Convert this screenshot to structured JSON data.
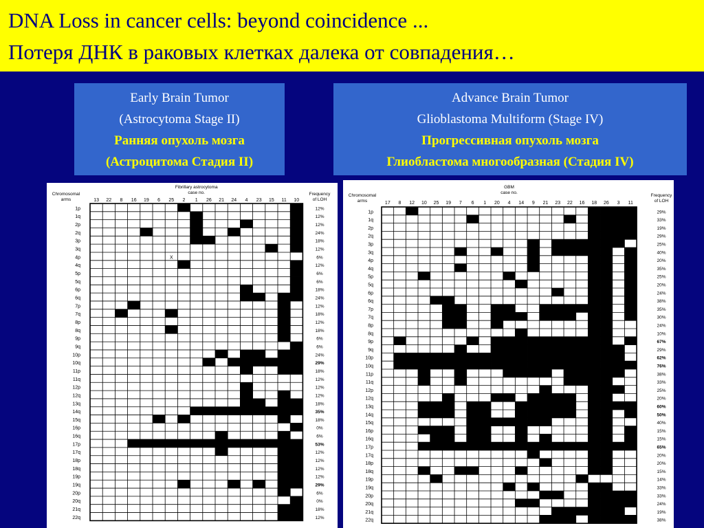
{
  "title": {
    "en": "DNA Loss in cancer cells: beyond coincidence ...",
    "ru": "Потеря ДНК в раковых клетках далека от совпадения…"
  },
  "left_label": {
    "en_line1": "Early Brain Tumor",
    "en_line2": "(Astrocytoma Stage II)",
    "ru_line1": "Ранняя опухоль мозга",
    "ru_line2": "(Астроцитома Стадия II)"
  },
  "right_label": {
    "en_line1": "Advance Brain Tumor",
    "en_line2": "Glioblastoma Multiform (Stage IV)",
    "ru_line1": "Прогрессивная опухоль мозга",
    "ru_line2": "Глиобластома многообразная (Стадия IV)"
  },
  "arms": [
    "1p",
    "1q",
    "2p",
    "2q",
    "3p",
    "3q",
    "4p",
    "4q",
    "5p",
    "5q",
    "6p",
    "6q",
    "7p",
    "7q",
    "8p",
    "8q",
    "9p",
    "9q",
    "10p",
    "10q",
    "11p",
    "11q",
    "12p",
    "12q",
    "13q",
    "14q",
    "15q",
    "16p",
    "16q",
    "17p",
    "17q",
    "18p",
    "18q",
    "19p",
    "19q",
    "20p",
    "20q",
    "21q",
    "22q"
  ],
  "left_table": {
    "header_label1": "Chromosomal",
    "header_label2": "arms",
    "title1": "Fibrillary astrocytoma",
    "title2": "case no.",
    "freq1": "Frequency",
    "freq2": "of LOH",
    "cases": [
      "13",
      "22",
      "8",
      "16",
      "19",
      "6",
      "25",
      "2",
      "1",
      "26",
      "21",
      "24",
      "4",
      "23",
      "15",
      "11",
      "10"
    ],
    "freq": [
      "12%",
      "12%",
      "12%",
      "24%",
      "18%",
      "12%",
      "6%",
      "12%",
      "6%",
      "6%",
      "18%",
      "24%",
      "12%",
      "18%",
      "12%",
      "18%",
      "6%",
      "6%",
      "24%",
      "29%",
      "18%",
      "12%",
      "12%",
      "12%",
      "18%",
      "35%",
      "18%",
      "0%",
      "6%",
      "53%",
      "12%",
      "12%",
      "12%",
      "12%",
      "29%",
      "6%",
      "0%",
      "18%",
      "12%"
    ],
    "bold_freq": [
      19,
      25,
      29,
      34
    ],
    "marker": "X",
    "loss": [
      [
        7,
        16
      ],
      [
        8,
        16
      ],
      [
        8,
        12,
        16
      ],
      [
        4,
        8,
        11,
        16
      ],
      [
        8,
        9,
        16
      ],
      [
        14,
        16
      ],
      [],
      [
        7,
        16
      ],
      [
        16
      ],
      [
        16
      ],
      [
        12,
        16
      ],
      [
        12,
        13,
        15,
        16
      ],
      [
        3,
        15
      ],
      [
        2,
        6,
        15
      ],
      [
        15
      ],
      [
        6,
        15
      ],
      [
        15
      ],
      [
        16
      ],
      [
        10,
        12,
        13,
        15,
        16
      ],
      [
        9,
        11,
        12,
        13,
        14,
        15,
        16
      ],
      [
        12,
        15,
        16
      ],
      [],
      [
        12
      ],
      [
        12,
        15
      ],
      [
        12,
        13,
        15,
        16
      ],
      [
        8,
        9,
        10,
        11,
        12,
        13,
        14,
        15,
        16
      ],
      [
        5,
        7,
        15
      ],
      [
        16
      ],
      [
        10,
        15
      ],
      [
        3,
        4,
        5,
        6,
        7,
        8,
        9,
        10,
        11,
        12,
        13,
        14,
        15,
        16
      ],
      [
        10,
        15,
        16
      ],
      [
        15,
        16
      ],
      [
        15,
        16
      ],
      [
        15,
        16
      ],
      [
        7,
        11,
        13,
        15,
        16
      ],
      [
        15
      ],
      [
        16
      ],
      [
        15,
        16
      ],
      [
        15,
        16
      ]
    ],
    "x_marks": [
      [
        6,
        6
      ]
    ]
  },
  "right_table": {
    "header_label1": "Chromosomal",
    "header_label2": "arms",
    "title1": "GBM",
    "title2": "case no.",
    "freq1": "Frequency",
    "freq2": "of LOH",
    "cases": [
      "17",
      "8",
      "12",
      "10",
      "25",
      "19",
      "7",
      "6",
      "1",
      "20",
      "4",
      "14",
      "9",
      "21",
      "23",
      "22",
      "16",
      "18",
      "26",
      "3",
      "11"
    ],
    "freq": [
      "29%",
      "33%",
      "19%",
      "29%",
      "25%",
      "40%",
      "20%",
      "35%",
      "25%",
      "20%",
      "24%",
      "38%",
      "35%",
      "30%",
      "24%",
      "10%",
      "67%",
      "29%",
      "62%",
      "76%",
      "38%",
      "33%",
      "25%",
      "20%",
      "60%",
      "50%",
      "40%",
      "15%",
      "15%",
      "65%",
      "20%",
      "20%",
      "15%",
      "14%",
      "33%",
      "33%",
      "24%",
      "19%",
      "38%"
    ],
    "bold_freq": [
      16,
      18,
      19,
      24,
      25,
      29
    ],
    "marker": "X",
    "loss": [
      [
        2,
        17,
        18,
        19,
        20
      ],
      [
        7,
        15,
        17,
        18,
        19,
        20
      ],
      [
        17,
        18,
        19,
        20
      ],
      [
        17,
        18,
        19,
        20
      ],
      [
        12,
        14,
        15,
        16,
        17,
        18,
        19
      ],
      [
        6,
        9,
        12,
        14,
        15,
        16,
        17,
        18,
        20
      ],
      [
        12,
        17,
        18,
        20
      ],
      [
        6,
        12,
        17,
        18,
        20
      ],
      [
        3,
        10,
        17,
        18,
        20
      ],
      [
        11,
        17,
        18,
        20
      ],
      [
        14,
        17,
        18,
        20
      ],
      [
        4,
        5,
        17,
        18,
        20
      ],
      [
        5,
        6,
        9,
        10,
        13,
        14,
        15,
        16,
        17,
        18,
        20
      ],
      [
        5,
        6,
        9,
        10,
        11,
        13,
        14,
        15,
        17,
        18,
        20
      ],
      [
        5,
        6,
        9,
        17,
        18
      ],
      [
        11,
        17,
        18
      ],
      [
        1,
        7,
        9,
        10,
        11,
        12,
        13,
        14,
        15,
        16,
        17,
        18,
        20
      ],
      [
        6,
        9,
        10,
        11,
        12,
        13,
        14,
        15,
        16,
        17,
        18,
        19
      ],
      [
        1,
        2,
        3,
        4,
        5,
        6,
        7,
        8,
        9,
        10,
        11,
        12,
        13,
        14,
        15,
        16,
        17,
        18,
        19
      ],
      [
        1,
        2,
        3,
        4,
        5,
        6,
        7,
        8,
        9,
        10,
        11,
        12,
        13,
        14,
        15,
        16,
        17,
        18,
        19,
        20
      ],
      [
        3,
        6,
        10,
        11,
        12,
        13,
        15,
        16,
        17,
        18,
        19
      ],
      [
        3,
        6,
        15,
        16,
        17,
        18
      ],
      [
        13,
        17,
        18,
        19
      ],
      [
        5,
        9,
        10,
        12,
        13,
        14,
        15,
        17,
        18
      ],
      [
        3,
        4,
        5,
        7,
        8,
        11,
        12,
        13,
        14,
        15,
        17,
        18,
        19,
        20
      ],
      [
        3,
        4,
        5,
        7,
        8,
        11,
        12,
        13,
        14,
        15,
        17,
        18,
        20
      ],
      [
        7,
        8,
        9,
        10,
        11,
        12,
        13,
        17,
        18
      ],
      [
        3,
        4,
        5,
        7,
        8,
        11,
        17,
        18,
        20
      ],
      [
        4,
        5,
        7,
        8,
        11,
        13,
        17,
        18,
        20
      ],
      [
        3,
        4,
        5,
        6,
        7,
        8,
        9,
        10,
        11,
        12,
        13,
        14,
        15,
        16,
        17,
        18,
        19,
        20
      ],
      [
        12,
        17,
        18
      ],
      [
        13,
        17,
        18
      ],
      [
        3,
        6,
        7,
        11,
        17,
        18
      ],
      [
        4,
        16
      ],
      [
        10,
        12,
        17,
        18
      ],
      [
        13,
        14,
        17,
        18,
        19,
        20
      ],
      [
        11,
        12,
        17,
        18,
        19,
        20
      ],
      [
        14,
        15,
        16,
        17,
        18,
        19
      ],
      [
        13,
        14,
        15,
        17,
        18,
        19,
        20
      ]
    ],
    "x_marks": [
      [
        4,
        18
      ],
      [
        5,
        18
      ],
      [
        6,
        18
      ],
      [
        7,
        18
      ],
      [
        8,
        18
      ],
      [
        9,
        18
      ],
      [
        12,
        18
      ],
      [
        13,
        18
      ],
      [
        22,
        18
      ],
      [
        23,
        18
      ],
      [
        24,
        18
      ],
      [
        25,
        18
      ],
      [
        26,
        18
      ],
      [
        27,
        18
      ],
      [
        28,
        18
      ],
      [
        29,
        18
      ],
      [
        30,
        18
      ],
      [
        31,
        18
      ],
      [
        32,
        18
      ]
    ]
  }
}
